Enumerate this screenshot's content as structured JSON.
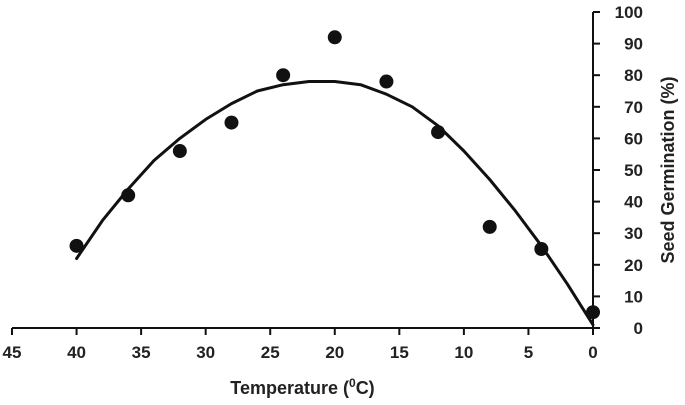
{
  "chart_data": {
    "type": "scatter",
    "xlabel": "Temperature (°C)",
    "xlabel_prefix": "Temperature (",
    "xlabel_sup": "0",
    "xlabel_suffix": "C)",
    "ylabel": "Seed Germination (%)",
    "x_reversed": true,
    "xlim": [
      0,
      45
    ],
    "ylim": [
      0,
      100
    ],
    "x_ticks": [
      45,
      40,
      35,
      30,
      25,
      20,
      15,
      10,
      5,
      0
    ],
    "y_ticks": [
      0,
      10,
      20,
      30,
      40,
      50,
      60,
      70,
      80,
      90,
      100
    ],
    "y_axis_position": "right",
    "grid": false,
    "legend": "none",
    "colors": {
      "points": "#111111",
      "curve": "#111111",
      "axis": "#111111"
    },
    "series": [
      {
        "type": "scatter",
        "points": [
          {
            "x": 40,
            "y": 26
          },
          {
            "x": 36,
            "y": 42
          },
          {
            "x": 32,
            "y": 56
          },
          {
            "x": 28,
            "y": 65
          },
          {
            "x": 24,
            "y": 80
          },
          {
            "x": 20,
            "y": 92
          },
          {
            "x": 16,
            "y": 78
          },
          {
            "x": 12,
            "y": 62
          },
          {
            "x": 8,
            "y": 32
          },
          {
            "x": 4,
            "y": 25
          },
          {
            "x": 0,
            "y": 5
          }
        ]
      },
      {
        "type": "line",
        "fit": "quadratic",
        "x": [
          40,
          38,
          36,
          34,
          32,
          30,
          28,
          26,
          24,
          22,
          20,
          18,
          16,
          14,
          12,
          10,
          8,
          6,
          4,
          2,
          0
        ],
        "y": [
          22,
          34,
          44,
          53,
          60,
          66,
          71,
          75,
          77,
          78,
          78,
          77,
          74,
          70,
          64,
          56,
          47,
          37,
          26,
          14,
          1
        ]
      }
    ]
  }
}
